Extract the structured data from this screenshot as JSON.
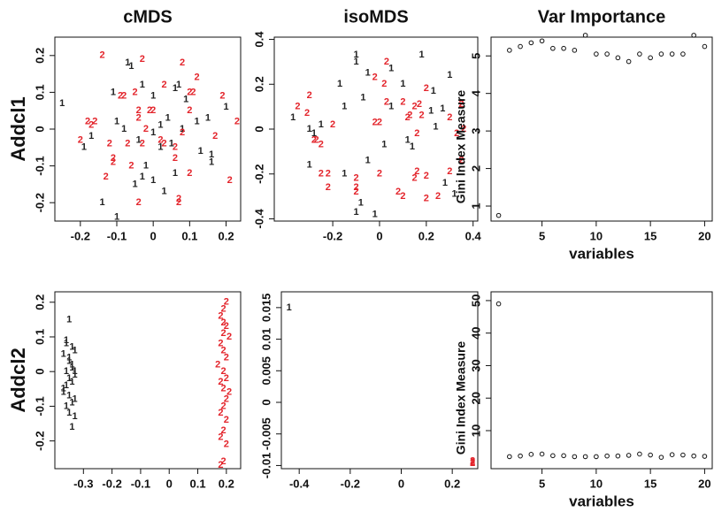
{
  "column_titles": [
    "cMDS",
    "isoMDS",
    "Var Importance"
  ],
  "row_labels": [
    "Addcl1",
    "Addcl2"
  ],
  "chart_data": [
    {
      "type": "scatter",
      "xlim": [
        -0.27,
        0.24
      ],
      "ylim": [
        -0.25,
        0.25
      ],
      "xticks": [
        -0.2,
        -0.1,
        0,
        0.1,
        0.2
      ],
      "yticks": [
        -0.2,
        -0.1,
        0,
        0.1,
        0.2
      ],
      "series": [
        {
          "name": "1",
          "color": "#222222",
          "x": [
            -0.25,
            -0.19,
            -0.11,
            -0.07,
            -0.06,
            -0.03,
            0.0,
            0.06,
            0.07,
            0.09,
            -0.1,
            -0.08,
            -0.04,
            0.0,
            0.02,
            0.04,
            0.08,
            0.12,
            0.15,
            0.16,
            0.16,
            0.2,
            0.13,
            0.02,
            -0.02,
            -0.05,
            -0.03,
            0.0,
            -0.14,
            -0.1,
            0.05,
            -0.17,
            0.03,
            0.06
          ],
          "values": [
            0.07,
            -0.05,
            0.1,
            0.18,
            0.17,
            0.12,
            0.09,
            0.11,
            0.12,
            0.08,
            0.02,
            0.0,
            -0.03,
            -0.01,
            0.01,
            0.03,
            0.0,
            0.02,
            0.03,
            -0.07,
            -0.09,
            0.06,
            -0.06,
            -0.05,
            -0.1,
            -0.15,
            -0.13,
            -0.14,
            -0.2,
            -0.24,
            -0.04,
            -0.02,
            -0.17,
            -0.12
          ]
        },
        {
          "name": "2",
          "color": "#e3242b",
          "x": [
            -0.14,
            -0.03,
            -0.09,
            -0.08,
            -0.18,
            -0.17,
            -0.16,
            -0.2,
            -0.12,
            -0.11,
            -0.11,
            -0.05,
            -0.04,
            -0.04,
            -0.02,
            -0.01,
            0.0,
            0.02,
            0.03,
            0.08,
            0.06,
            0.1,
            0.12,
            0.08,
            0.1,
            0.11,
            0.19,
            0.23,
            0.17,
            0.21,
            0.1,
            0.07,
            0.07,
            -0.04,
            -0.06,
            0.06,
            0.03,
            -0.13,
            -0.07,
            -0.03
          ],
          "values": [
            0.2,
            0.19,
            0.09,
            0.09,
            0.02,
            0.01,
            0.02,
            -0.03,
            -0.04,
            -0.08,
            -0.09,
            0.1,
            0.05,
            0.03,
            0.0,
            0.05,
            0.05,
            -0.03,
            -0.04,
            -0.01,
            -0.05,
            0.05,
            0.14,
            0.18,
            0.1,
            0.1,
            0.09,
            0.02,
            -0.02,
            -0.14,
            -0.12,
            -0.2,
            -0.19,
            -0.2,
            -0.1,
            -0.08,
            0.12,
            -0.13,
            -0.04,
            -0.04
          ]
        }
      ]
    },
    {
      "type": "scatter",
      "xlim": [
        -0.45,
        0.42
      ],
      "ylim": [
        -0.41,
        0.41
      ],
      "xticks": [
        -0.2,
        0,
        0.2,
        0.4
      ],
      "yticks": [
        -0.4,
        -0.2,
        0,
        0.2,
        0.4
      ],
      "series": [
        {
          "name": "1",
          "color": "#222222",
          "x": [
            -0.37,
            -0.25,
            -0.17,
            -0.15,
            -0.1,
            -0.1,
            -0.07,
            -0.05,
            0.05,
            0.18,
            0.23,
            0.3,
            0.27,
            0.22,
            0.24,
            0.14,
            0.12,
            0.02,
            -0.05,
            -0.08,
            -0.1,
            -0.02,
            -0.3,
            -0.28,
            -0.3,
            0.28,
            0.32,
            0.05,
            -0.15,
            0.1
          ],
          "values": [
            0.05,
            0.02,
            0.2,
            0.1,
            0.33,
            0.3,
            0.14,
            0.25,
            0.27,
            0.33,
            0.17,
            0.24,
            0.09,
            0.08,
            0.01,
            -0.08,
            -0.05,
            -0.07,
            -0.14,
            -0.33,
            -0.37,
            -0.38,
            -0.16,
            -0.02,
            0.0,
            -0.24,
            -0.29,
            0.1,
            -0.2,
            0.2
          ]
        },
        {
          "name": "2",
          "color": "#e3242b",
          "x": [
            -0.3,
            -0.35,
            -0.31,
            -0.28,
            -0.25,
            -0.27,
            -0.2,
            -0.22,
            -0.25,
            -0.22,
            -0.1,
            -0.1,
            0.0,
            -0.02,
            0.0,
            0.03,
            0.02,
            0.1,
            0.12,
            0.13,
            0.15,
            0.17,
            0.2,
            0.18,
            0.16,
            0.3,
            0.35,
            0.36,
            0.33,
            0.35,
            0.3,
            0.16,
            0.15,
            0.2,
            0.25,
            0.2,
            0.08,
            0.1,
            0.03,
            -0.1,
            -0.02
          ],
          "values": [
            0.15,
            0.1,
            0.07,
            -0.05,
            -0.07,
            -0.05,
            0.02,
            -0.2,
            -0.2,
            -0.26,
            -0.22,
            -0.28,
            -0.2,
            0.03,
            0.03,
            0.12,
            0.2,
            0.12,
            0.05,
            0.06,
            0.1,
            0.11,
            0.18,
            0.06,
            -0.02,
            0.05,
            0.11,
            0.0,
            -0.02,
            -0.14,
            -0.19,
            -0.19,
            -0.22,
            -0.21,
            -0.3,
            -0.31,
            -0.28,
            -0.3,
            0.3,
            -0.26,
            0.23
          ]
        }
      ]
    },
    {
      "type": "scatter",
      "xlim": [
        0.3,
        20.7
      ],
      "ylim": [
        0.6,
        5.5
      ],
      "xticks": [
        5,
        10,
        15,
        20
      ],
      "yticks": [
        1,
        2,
        3,
        4,
        5
      ],
      "xlabel": "variables",
      "ylabel": "Gini Index Measure",
      "color": "#111111",
      "x": [
        1,
        2,
        3,
        4,
        5,
        6,
        7,
        8,
        9,
        10,
        11,
        12,
        13,
        14,
        15,
        16,
        17,
        18,
        19,
        20
      ],
      "values": [
        0.75,
        5.15,
        5.25,
        5.35,
        5.4,
        5.2,
        5.2,
        5.15,
        5.55,
        5.05,
        5.05,
        4.95,
        4.85,
        5.05,
        4.95,
        5.05,
        5.05,
        5.05,
        5.55,
        5.25
      ]
    },
    {
      "type": "scatter",
      "xlim": [
        -0.4,
        0.25
      ],
      "ylim": [
        -0.28,
        0.23
      ],
      "xticks": [
        -0.3,
        -0.2,
        -0.1,
        0,
        0.1,
        0.2
      ],
      "yticks": [
        -0.2,
        -0.1,
        0,
        0.1,
        0.2
      ],
      "series": [
        {
          "name": "1",
          "color": "#222222",
          "x": [
            -0.35,
            -0.36,
            -0.34,
            -0.33,
            -0.37,
            -0.35,
            -0.34,
            -0.36,
            -0.33,
            -0.35,
            -0.34,
            -0.36,
            -0.37,
            -0.35,
            -0.33,
            -0.34,
            -0.36,
            -0.35,
            -0.33,
            -0.34,
            -0.36,
            -0.35,
            -0.34,
            -0.37,
            -0.33
          ],
          "values": [
            0.15,
            0.08,
            0.07,
            0.06,
            0.05,
            0.03,
            0.02,
            0.0,
            -0.01,
            -0.02,
            -0.03,
            -0.04,
            -0.06,
            -0.07,
            -0.08,
            -0.09,
            -0.1,
            -0.12,
            -0.13,
            -0.16,
            0.09,
            0.04,
            0.01,
            -0.05,
            0.0
          ]
        },
        {
          "name": "2",
          "color": "#e3242b",
          "x": [
            0.2,
            0.19,
            0.18,
            0.2,
            0.19,
            0.21,
            0.18,
            0.19,
            0.2,
            0.17,
            0.19,
            0.2,
            0.18,
            0.19,
            0.21,
            0.2,
            0.19,
            0.18,
            0.2,
            0.19,
            0.18,
            0.2,
            0.19,
            0.18,
            0.19
          ],
          "values": [
            0.2,
            0.18,
            0.16,
            0.13,
            0.11,
            0.1,
            0.08,
            0.06,
            0.04,
            0.02,
            0.0,
            -0.02,
            -0.03,
            -0.05,
            -0.06,
            -0.08,
            -0.1,
            -0.12,
            -0.14,
            -0.17,
            -0.19,
            -0.21,
            -0.26,
            -0.27,
            0.14
          ]
        }
      ]
    },
    {
      "type": "scatter",
      "xlim": [
        -0.47,
        0.3
      ],
      "ylim": [
        -0.0105,
        0.0175
      ],
      "xticks": [
        -0.4,
        -0.2,
        0,
        0.2
      ],
      "yticks": [
        -0.01,
        -0.005,
        0,
        0.005,
        0.01,
        0.015
      ],
      "series": [
        {
          "name": "1",
          "color": "#222222",
          "x": [
            -0.44
          ],
          "values": [
            0.015
          ]
        },
        {
          "name": "2",
          "color": "#e3242b",
          "x": [
            0.28,
            0.28,
            0.28
          ],
          "values": [
            -0.0093,
            -0.0095,
            -0.0097
          ]
        }
      ]
    },
    {
      "type": "scatter",
      "xlim": [
        0.3,
        20.7
      ],
      "ylim": [
        -1.7,
        52.7
      ],
      "xticks": [
        5,
        10,
        15,
        20
      ],
      "yticks": [
        10,
        20,
        30,
        40,
        50
      ],
      "xlabel": "variables",
      "ylabel": "Gini Index Measure",
      "color": "#111111",
      "x": [
        1,
        2,
        3,
        4,
        5,
        6,
        7,
        8,
        9,
        10,
        11,
        12,
        13,
        14,
        15,
        16,
        17,
        18,
        19,
        20
      ],
      "values": [
        49,
        2,
        2.2,
        2.7,
        2.8,
        2.3,
        2.3,
        2,
        2,
        2,
        2.2,
        2.2,
        2.4,
        2.8,
        2.5,
        1.8,
        2.6,
        2.5,
        2.2,
        2.1
      ]
    }
  ]
}
